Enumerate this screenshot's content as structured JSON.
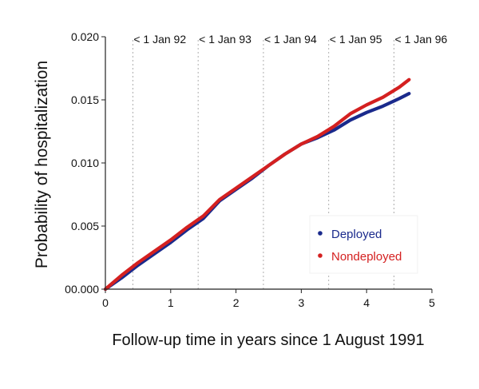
{
  "chart_data": {
    "type": "line",
    "xlabel": "Follow-up time in years since 1 August 1991",
    "ylabel": "Probability of hospitalization",
    "xlim": [
      0,
      5
    ],
    "ylim": [
      0,
      0.02
    ],
    "x_ticks": [
      "0",
      "1",
      "2",
      "3",
      "4",
      "5"
    ],
    "y_ticks": [
      "00.000",
      "0.005",
      "0.010",
      "0.015",
      "0.020"
    ],
    "grid": false,
    "legend_position": "bottom-right",
    "annotations": [
      {
        "x": 0.42,
        "label": "< 1 Jan 92"
      },
      {
        "x": 1.42,
        "label": "< 1 Jan 93"
      },
      {
        "x": 2.42,
        "label": "< 1 Jan 94"
      },
      {
        "x": 3.42,
        "label": "< 1 Jan 95"
      },
      {
        "x": 4.42,
        "label": "< 1 Jan 96"
      }
    ],
    "series": [
      {
        "name": "Deployed",
        "color": "#1a2a8c",
        "x": [
          0,
          0.25,
          0.5,
          0.75,
          1.0,
          1.25,
          1.5,
          1.75,
          2.0,
          2.25,
          2.5,
          2.75,
          3.0,
          3.25,
          3.5,
          3.75,
          4.0,
          4.25,
          4.5,
          4.65
        ],
        "y": [
          0.0,
          0.0009,
          0.0019,
          0.0028,
          0.0037,
          0.0047,
          0.0056,
          0.007,
          0.0079,
          0.0088,
          0.0098,
          0.0107,
          0.0115,
          0.012,
          0.0126,
          0.0134,
          0.014,
          0.0145,
          0.0151,
          0.0155
        ]
      },
      {
        "name": "Nondeployed",
        "color": "#d42020",
        "x": [
          0,
          0.25,
          0.5,
          0.75,
          1.0,
          1.25,
          1.5,
          1.75,
          2.0,
          2.25,
          2.5,
          2.75,
          3.0,
          3.25,
          3.5,
          3.75,
          4.0,
          4.25,
          4.5,
          4.65
        ],
        "y": [
          0.0,
          0.0011,
          0.0021,
          0.003,
          0.0039,
          0.0049,
          0.0058,
          0.0071,
          0.008,
          0.0089,
          0.0098,
          0.0107,
          0.0115,
          0.0121,
          0.0129,
          0.0139,
          0.0146,
          0.0152,
          0.016,
          0.0166
        ]
      }
    ]
  }
}
